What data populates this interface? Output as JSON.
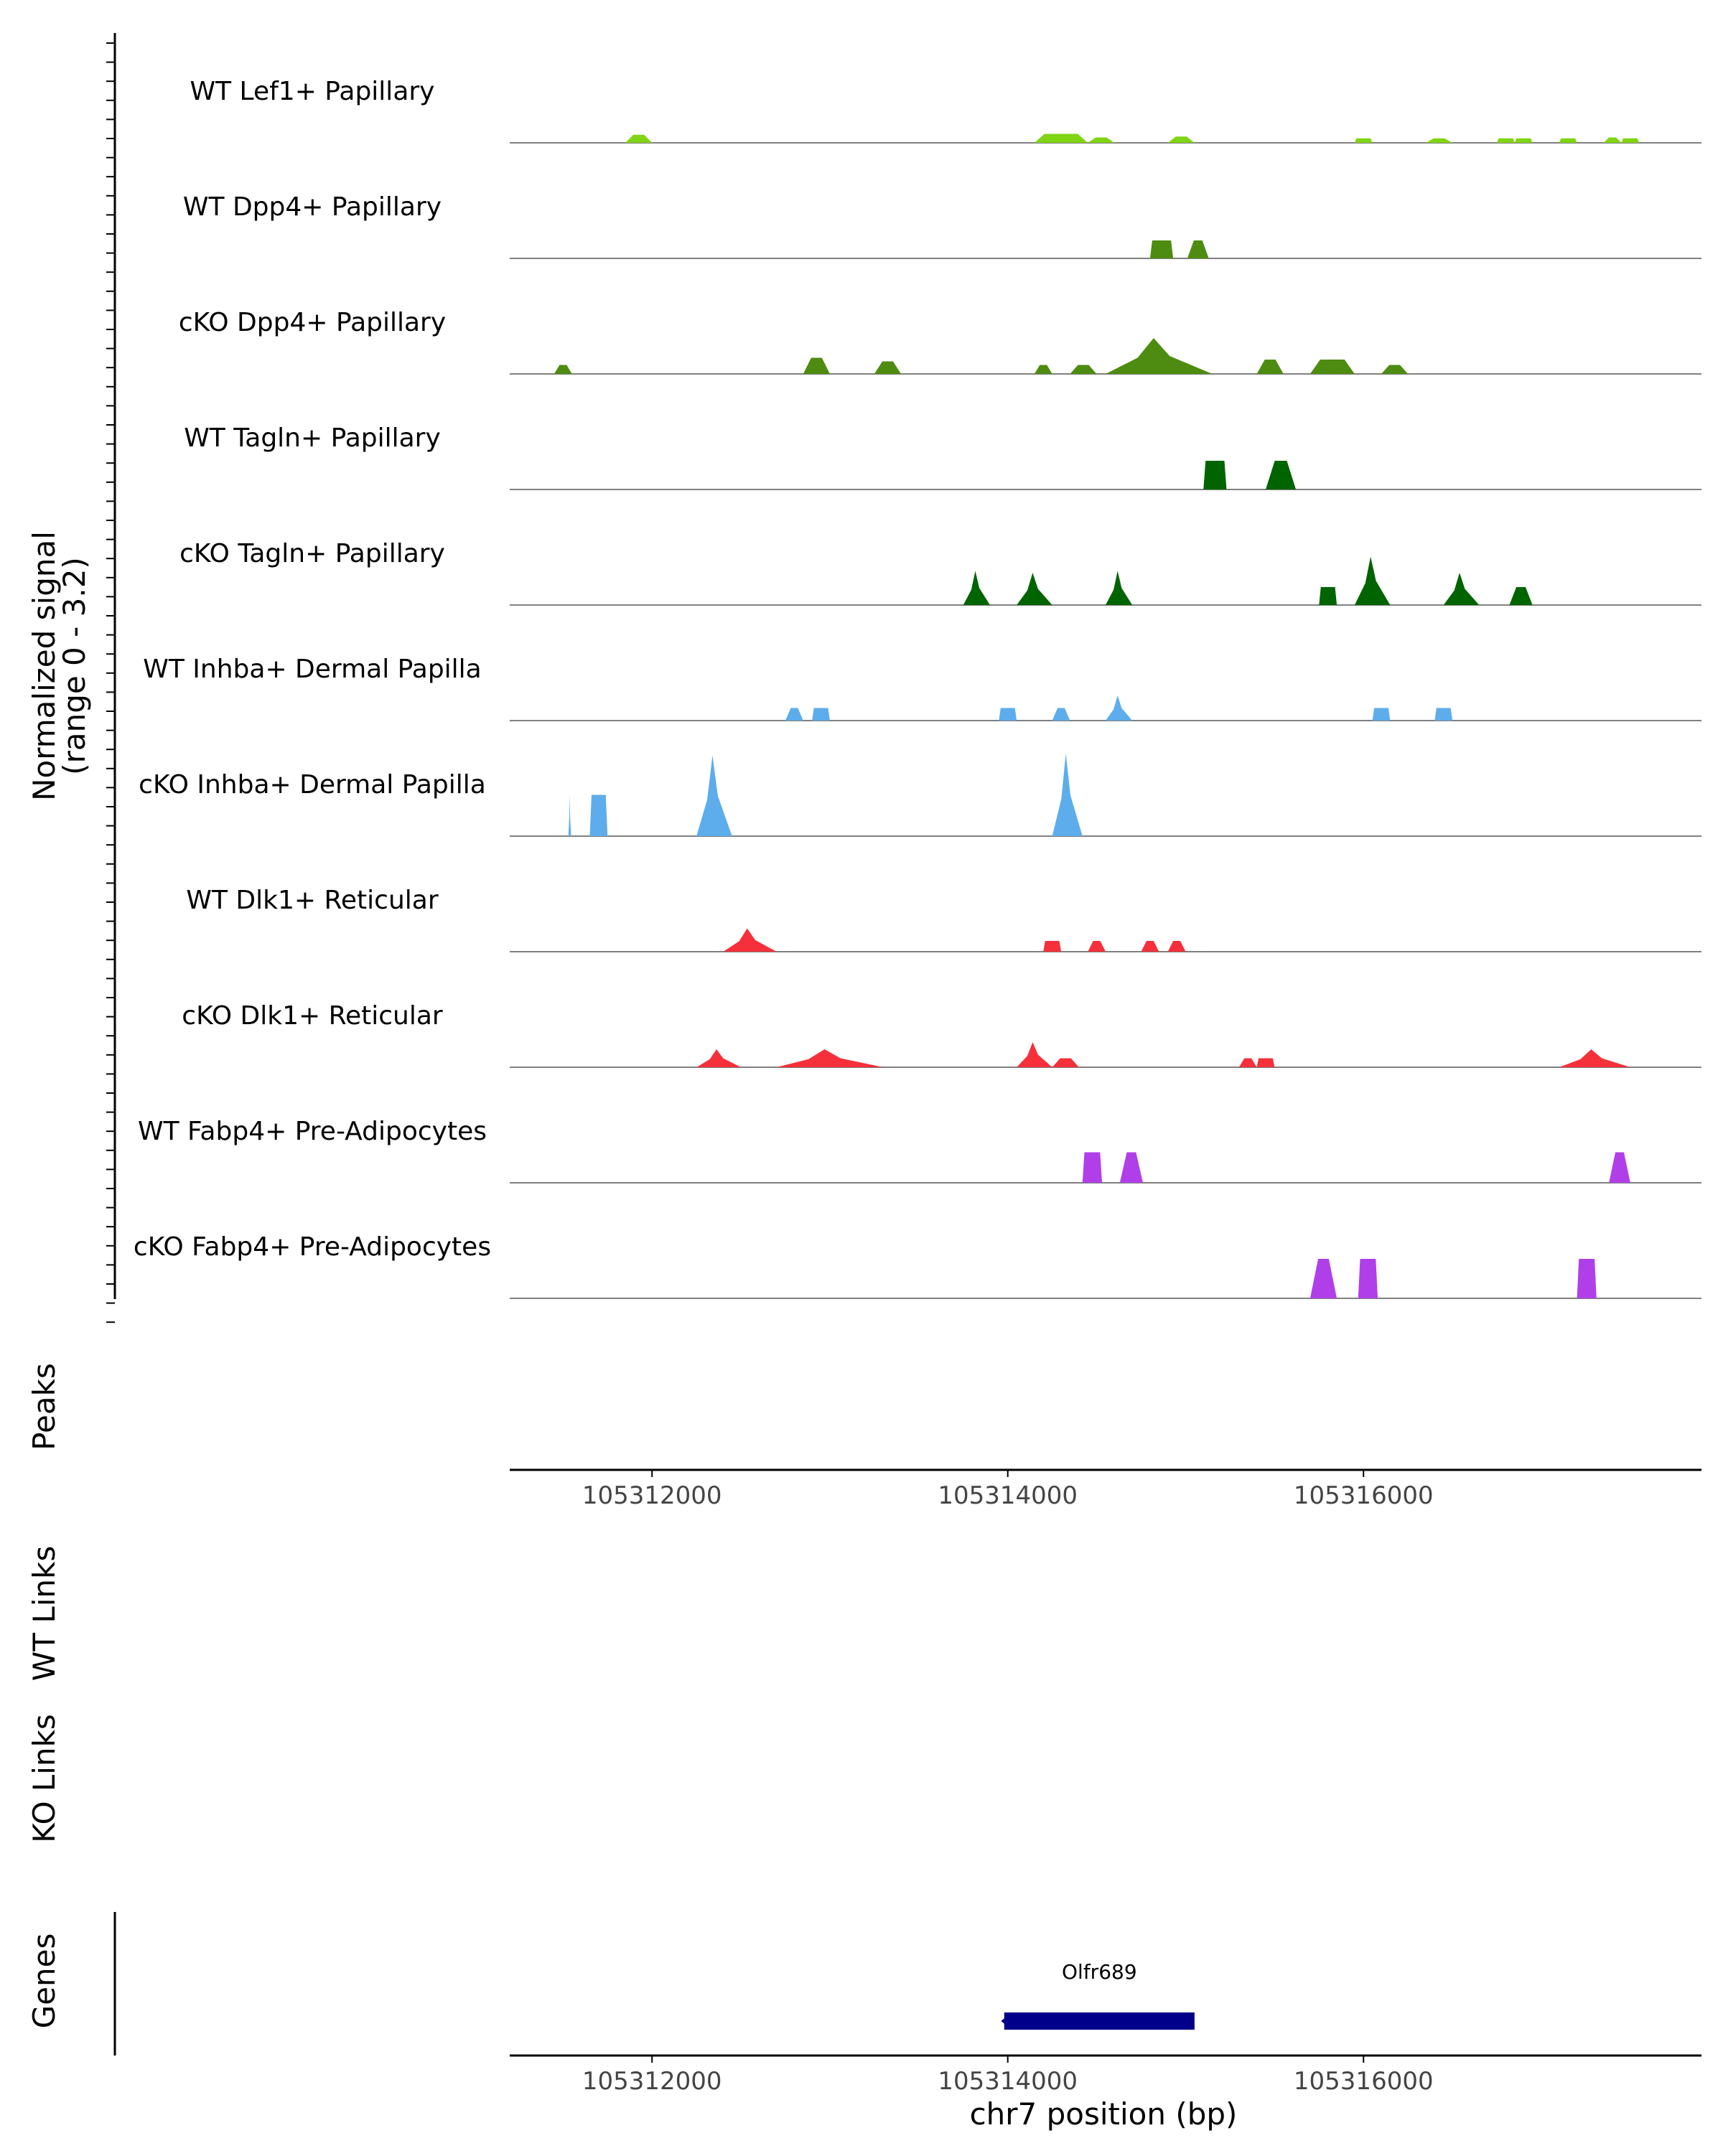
{
  "chart_data": {
    "type": "area",
    "title": "",
    "chromosome": "chr7",
    "xlabel": "chr7 position (bp)",
    "ylabel_line1": "Normalized signal",
    "ylabel_line2": "(range 0 - 3.2)",
    "y_range": [
      0,
      3.2
    ],
    "x_range": [
      105311200,
      105317900
    ],
    "x_ticks": [
      105312000,
      105314000,
      105316000
    ],
    "x_tick_labels": [
      "105312000",
      "105314000",
      "105316000"
    ],
    "panel_labels": {
      "peaks": "Peaks",
      "wt_links": "WT Links",
      "ko_links": "KO Links",
      "genes": "Genes"
    },
    "colors": {
      "Lef1": "#7FD414",
      "Dpp4": "#4D8C10",
      "Tagln": "#006400",
      "Inhba": "#5DADEC",
      "Dlk1": "#F5303A",
      "Fabp4": "#B03FEA",
      "gene": "#00008B",
      "baseline": "#808080"
    },
    "series": [
      {
        "name": "WT Lef1+ Papillary",
        "color_key": "Lef1",
        "peaks": [
          [
            105311850,
            105312000,
            0.45,
            "t"
          ],
          [
            105314150,
            105314450,
            0.5,
            "t"
          ],
          [
            105314450,
            105314600,
            0.3,
            "t"
          ],
          [
            105314900,
            105315050,
            0.35,
            "t"
          ],
          [
            105315950,
            105316050,
            0.25,
            "b"
          ],
          [
            105316350,
            105316500,
            0.25,
            "t"
          ],
          [
            105316750,
            105316850,
            0.25,
            "b"
          ],
          [
            105316850,
            105316950,
            0.25,
            "b"
          ],
          [
            105317100,
            105317200,
            0.25,
            "b"
          ],
          [
            105317350,
            105317450,
            0.3,
            "t"
          ],
          [
            105317450,
            105317550,
            0.25,
            "b"
          ]
        ]
      },
      {
        "name": "WT Dpp4+ Papillary",
        "color_key": "Dpp4",
        "peaks": [
          [
            105314800,
            105314930,
            1.0,
            "b"
          ],
          [
            105315010,
            105315130,
            1.0,
            "t"
          ]
        ]
      },
      {
        "name": "cKO Dpp4+ Papillary",
        "color_key": "Dpp4",
        "peaks": [
          [
            105311450,
            105311550,
            0.5,
            "t"
          ],
          [
            105312850,
            105313000,
            0.9,
            "t"
          ],
          [
            105313250,
            105313400,
            0.7,
            "t"
          ],
          [
            105314150,
            105314250,
            0.5,
            "t"
          ],
          [
            105314350,
            105314500,
            0.5,
            "t"
          ],
          [
            105314550,
            105315150,
            2.0,
            "s"
          ],
          [
            105315400,
            105315550,
            0.8,
            "t"
          ],
          [
            105315700,
            105315950,
            0.8,
            "t"
          ],
          [
            105316100,
            105316250,
            0.5,
            "t"
          ]
        ]
      },
      {
        "name": "WT Tagln+ Papillary",
        "color_key": "Tagln",
        "peaks": [
          [
            105315100,
            105315230,
            1.6,
            "b"
          ],
          [
            105315450,
            105315620,
            1.6,
            "t"
          ]
        ]
      },
      {
        "name": "cKO Tagln+ Papillary",
        "color_key": "Tagln",
        "peaks": [
          [
            105313750,
            105313900,
            1.9,
            "s"
          ],
          [
            105314050,
            105314250,
            1.8,
            "s"
          ],
          [
            105314550,
            105314700,
            1.9,
            "s"
          ],
          [
            105315750,
            105315850,
            1.0,
            "b"
          ],
          [
            105315950,
            105316150,
            2.7,
            "s"
          ],
          [
            105316450,
            105316650,
            1.8,
            "s"
          ],
          [
            105316820,
            105316950,
            1.0,
            "t"
          ]
        ]
      },
      {
        "name": "WT Inhba+ Dermal Papilla",
        "color_key": "Inhba",
        "peaks": [
          [
            105312750,
            105312850,
            0.7,
            "t"
          ],
          [
            105312900,
            105313000,
            0.7,
            "b"
          ],
          [
            105313950,
            105314050,
            0.7,
            "b"
          ],
          [
            105314250,
            105314350,
            0.7,
            "t"
          ],
          [
            105314550,
            105314700,
            1.4,
            "s"
          ],
          [
            105316050,
            105316150,
            0.7,
            "b"
          ],
          [
            105316400,
            105316500,
            0.7,
            "b"
          ]
        ]
      },
      {
        "name": "cKO Inhba+ Dermal Papilla",
        "color_key": "Inhba",
        "peaks": [
          [
            105311530,
            105311545,
            2.3,
            "s"
          ],
          [
            105311650,
            105311750,
            2.3,
            "b"
          ],
          [
            105312250,
            105312450,
            4.5,
            "s"
          ],
          [
            105314250,
            105314420,
            4.6,
            "s"
          ]
        ]
      },
      {
        "name": "WT Dlk1+ Reticular",
        "color_key": "Dlk1",
        "peaks": [
          [
            105312400,
            105312700,
            1.3,
            "s"
          ],
          [
            105314200,
            105314300,
            0.6,
            "b"
          ],
          [
            105314450,
            105314550,
            0.6,
            "t"
          ],
          [
            105314750,
            105314850,
            0.6,
            "t"
          ],
          [
            105314900,
            105315000,
            0.6,
            "t"
          ]
        ]
      },
      {
        "name": "cKO Dlk1+ Reticular",
        "color_key": "Dlk1",
        "peaks": [
          [
            105312250,
            105312500,
            1.0,
            "s"
          ],
          [
            105312700,
            105313300,
            1.0,
            "s"
          ],
          [
            105314050,
            105314250,
            1.4,
            "s"
          ],
          [
            105314250,
            105314400,
            0.5,
            "t"
          ],
          [
            105315300,
            105315400,
            0.5,
            "t"
          ],
          [
            105315400,
            105315500,
            0.5,
            "b"
          ],
          [
            105317100,
            105317500,
            1.0,
            "s"
          ]
        ]
      },
      {
        "name": "WT Fabp4+ Pre-Adipocytes",
        "color_key": "Fabp4",
        "peaks": [
          [
            105314420,
            105314530,
            1.7,
            "b"
          ],
          [
            105314630,
            105314760,
            1.7,
            "t"
          ],
          [
            105317380,
            105317500,
            1.7,
            "t"
          ]
        ]
      },
      {
        "name": "cKO Fabp4+ Pre-Adipocytes",
        "color_key": "Fabp4",
        "peaks": [
          [
            105315700,
            105315850,
            2.2,
            "t"
          ],
          [
            105315970,
            105316080,
            2.2,
            "b"
          ],
          [
            105317200,
            105317310,
            2.2,
            "b"
          ]
        ]
      }
    ],
    "genes": [
      {
        "name": "Olfr689",
        "start": 105313980,
        "end": 105315050,
        "strand": "-"
      }
    ]
  }
}
